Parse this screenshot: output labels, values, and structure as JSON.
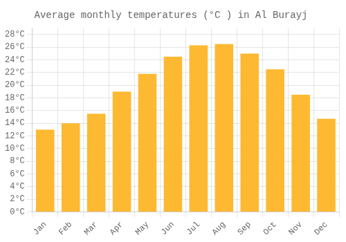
{
  "chart_data": {
    "type": "bar",
    "title": "Average monthly temperatures (°C ) in Al Burayj",
    "categories": [
      "Jan",
      "Feb",
      "Mar",
      "Apr",
      "May",
      "Jun",
      "Jul",
      "Aug",
      "Sep",
      "Oct",
      "Nov",
      "Dec"
    ],
    "values": [
      13,
      14,
      15.5,
      19,
      21.8,
      24.5,
      26.3,
      26.5,
      25,
      22.5,
      18.5,
      14.7
    ],
    "color": "#FDB931",
    "ylim": [
      0,
      29
    ],
    "yticks": [
      {
        "value": 0,
        "label": "0°C"
      },
      {
        "value": 2,
        "label": "2°C"
      },
      {
        "value": 4,
        "label": "4°C"
      },
      {
        "value": 6,
        "label": "6°C"
      },
      {
        "value": 8,
        "label": "8°C"
      },
      {
        "value": 10,
        "label": "10°C"
      },
      {
        "value": 12,
        "label": "12°C"
      },
      {
        "value": 14,
        "label": "14°C"
      },
      {
        "value": 16,
        "label": "16°C"
      },
      {
        "value": 18,
        "label": "18°C"
      },
      {
        "value": 20,
        "label": "20°C"
      },
      {
        "value": 22,
        "label": "22°C"
      },
      {
        "value": 24,
        "label": "24°C"
      },
      {
        "value": 26,
        "label": "26°C"
      },
      {
        "value": 28,
        "label": "28°C"
      }
    ],
    "grid": true
  }
}
